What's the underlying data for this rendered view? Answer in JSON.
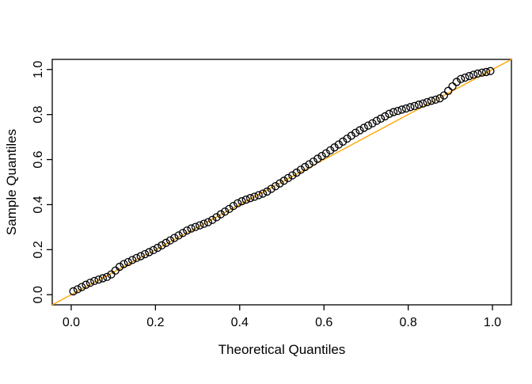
{
  "chart_data": {
    "type": "scatter",
    "title": "",
    "xlabel": "Theoretical Quantiles",
    "ylabel": "Sample Quantiles",
    "xlim": [
      -0.045,
      1.045
    ],
    "ylim": [
      -0.045,
      1.045
    ],
    "x_ticks": [
      0.0,
      0.2,
      0.4,
      0.6,
      0.8,
      1.0
    ],
    "y_ticks": [
      0.0,
      0.2,
      0.4,
      0.6,
      0.8,
      1.0
    ],
    "x_tick_labels": [
      "0.0",
      "0.2",
      "0.4",
      "0.6",
      "0.8",
      "1.0"
    ],
    "y_tick_labels": [
      "0.0",
      "0.2",
      "0.4",
      "0.6",
      "0.8",
      "1.0"
    ],
    "grid": false,
    "legend": null,
    "background": "#FFFFFF",
    "point_style": {
      "shape": "open-circle",
      "stroke": "#000000",
      "radius": 4.5
    },
    "reference_line": {
      "intercept": 0,
      "slope": 1,
      "color": "#FFA500"
    },
    "points": [
      [
        0.005,
        0.015
      ],
      [
        0.015,
        0.024
      ],
      [
        0.025,
        0.034
      ],
      [
        0.035,
        0.044
      ],
      [
        0.045,
        0.053
      ],
      [
        0.055,
        0.061
      ],
      [
        0.065,
        0.067
      ],
      [
        0.075,
        0.073
      ],
      [
        0.085,
        0.079
      ],
      [
        0.095,
        0.09
      ],
      [
        0.105,
        0.107
      ],
      [
        0.115,
        0.124
      ],
      [
        0.125,
        0.136
      ],
      [
        0.135,
        0.145
      ],
      [
        0.145,
        0.154
      ],
      [
        0.155,
        0.163
      ],
      [
        0.165,
        0.171
      ],
      [
        0.175,
        0.18
      ],
      [
        0.185,
        0.189
      ],
      [
        0.195,
        0.198
      ],
      [
        0.205,
        0.208
      ],
      [
        0.215,
        0.219
      ],
      [
        0.225,
        0.23
      ],
      [
        0.235,
        0.241
      ],
      [
        0.245,
        0.252
      ],
      [
        0.255,
        0.263
      ],
      [
        0.265,
        0.274
      ],
      [
        0.275,
        0.285
      ],
      [
        0.285,
        0.294
      ],
      [
        0.295,
        0.301
      ],
      [
        0.305,
        0.308
      ],
      [
        0.315,
        0.315
      ],
      [
        0.325,
        0.322
      ],
      [
        0.335,
        0.332
      ],
      [
        0.345,
        0.344
      ],
      [
        0.355,
        0.357
      ],
      [
        0.365,
        0.369
      ],
      [
        0.375,
        0.381
      ],
      [
        0.385,
        0.394
      ],
      [
        0.395,
        0.406
      ],
      [
        0.405,
        0.415
      ],
      [
        0.415,
        0.422
      ],
      [
        0.425,
        0.429
      ],
      [
        0.435,
        0.435
      ],
      [
        0.445,
        0.442
      ],
      [
        0.455,
        0.449
      ],
      [
        0.465,
        0.458
      ],
      [
        0.475,
        0.47
      ],
      [
        0.485,
        0.482
      ],
      [
        0.495,
        0.494
      ],
      [
        0.505,
        0.506
      ],
      [
        0.515,
        0.518
      ],
      [
        0.525,
        0.53
      ],
      [
        0.535,
        0.542
      ],
      [
        0.545,
        0.555
      ],
      [
        0.555,
        0.567
      ],
      [
        0.565,
        0.579
      ],
      [
        0.575,
        0.591
      ],
      [
        0.585,
        0.604
      ],
      [
        0.595,
        0.616
      ],
      [
        0.605,
        0.628
      ],
      [
        0.615,
        0.641
      ],
      [
        0.625,
        0.654
      ],
      [
        0.635,
        0.667
      ],
      [
        0.645,
        0.68
      ],
      [
        0.655,
        0.693
      ],
      [
        0.665,
        0.706
      ],
      [
        0.675,
        0.719
      ],
      [
        0.685,
        0.73
      ],
      [
        0.695,
        0.741
      ],
      [
        0.705,
        0.751
      ],
      [
        0.715,
        0.761
      ],
      [
        0.725,
        0.772
      ],
      [
        0.735,
        0.782
      ],
      [
        0.745,
        0.792
      ],
      [
        0.755,
        0.803
      ],
      [
        0.765,
        0.811
      ],
      [
        0.775,
        0.816
      ],
      [
        0.785,
        0.822
      ],
      [
        0.795,
        0.827
      ],
      [
        0.805,
        0.833
      ],
      [
        0.815,
        0.838
      ],
      [
        0.825,
        0.844
      ],
      [
        0.835,
        0.849
      ],
      [
        0.845,
        0.855
      ],
      [
        0.855,
        0.861
      ],
      [
        0.865,
        0.866
      ],
      [
        0.875,
        0.872
      ],
      [
        0.885,
        0.885
      ],
      [
        0.895,
        0.905
      ],
      [
        0.905,
        0.925
      ],
      [
        0.915,
        0.945
      ],
      [
        0.925,
        0.958
      ],
      [
        0.935,
        0.964
      ],
      [
        0.945,
        0.971
      ],
      [
        0.955,
        0.977
      ],
      [
        0.965,
        0.982
      ],
      [
        0.975,
        0.986
      ],
      [
        0.985,
        0.989
      ],
      [
        0.995,
        0.993
      ]
    ]
  }
}
